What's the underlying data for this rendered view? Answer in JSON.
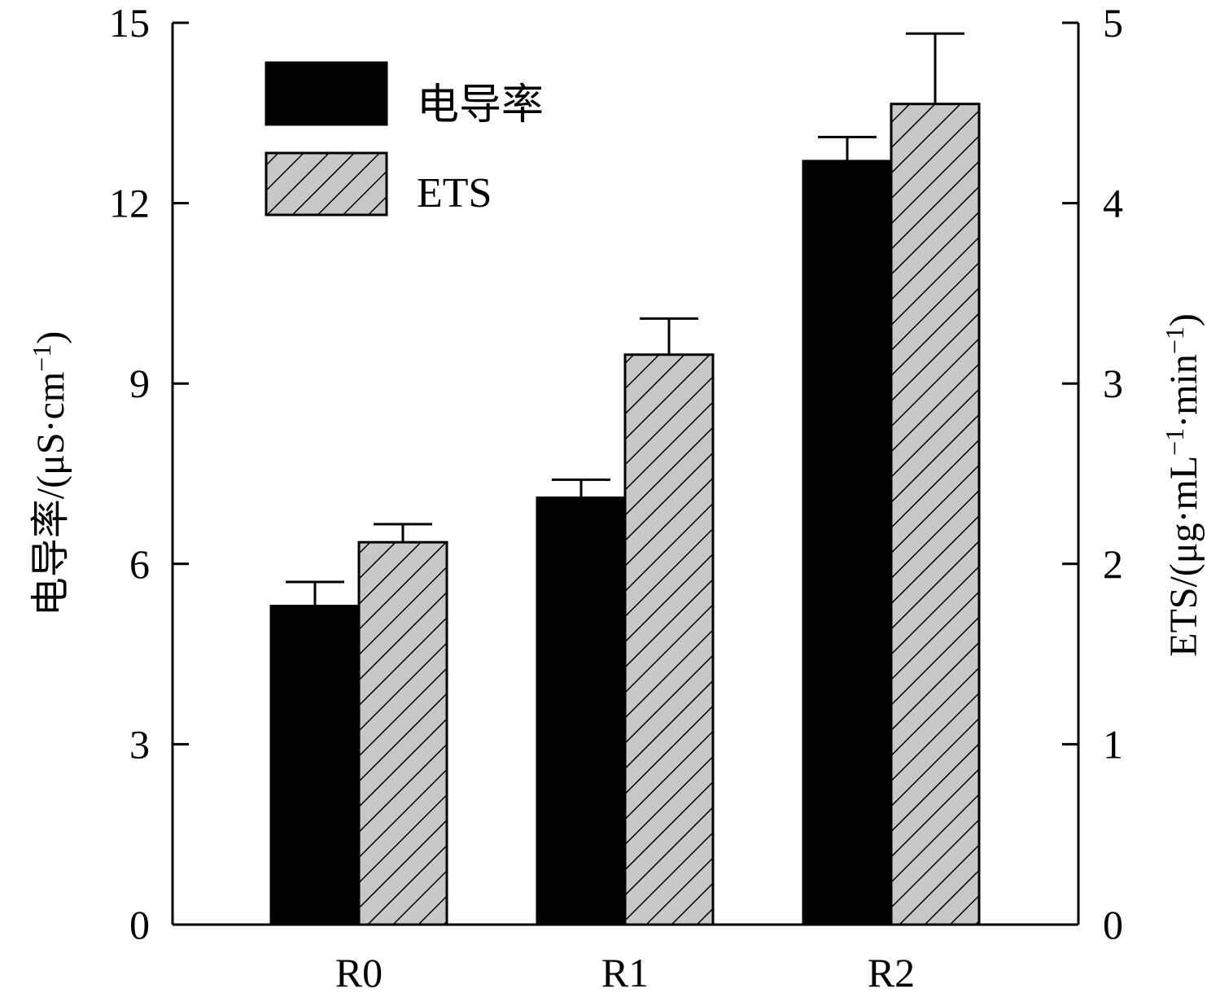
{
  "chart_data": {
    "type": "bar",
    "categories": [
      "R0",
      "R1",
      "R2"
    ],
    "series": [
      {
        "name": "电导率",
        "axis": "left",
        "fill": "#000000",
        "values": [
          5.3,
          7.1,
          12.7
        ],
        "errors": [
          0.4,
          0.3,
          0.4
        ]
      },
      {
        "name": "ETS",
        "axis": "right",
        "fill": "#c8c8c8",
        "pattern": "diagonal-hatch",
        "values": [
          2.12,
          3.16,
          4.55
        ],
        "errors": [
          0.1,
          0.2,
          0.39
        ]
      }
    ],
    "y_left": {
      "label_main": "电导率/(μS·cm",
      "label_sup": "−1",
      "label_end": ")",
      "ylim": [
        0,
        15
      ],
      "ticks": [
        0,
        3,
        6,
        9,
        12,
        15
      ]
    },
    "y_right": {
      "label_main": "ETS/(μg·mL",
      "label_sup1": "−1",
      "label_mid": "·min",
      "label_sup2": "−1",
      "label_end": ")",
      "ylim": [
        0,
        5
      ],
      "ticks": [
        0,
        1,
        2,
        3,
        4,
        5
      ]
    },
    "xlabel": "",
    "grid": false,
    "legend_position": "top-left"
  }
}
